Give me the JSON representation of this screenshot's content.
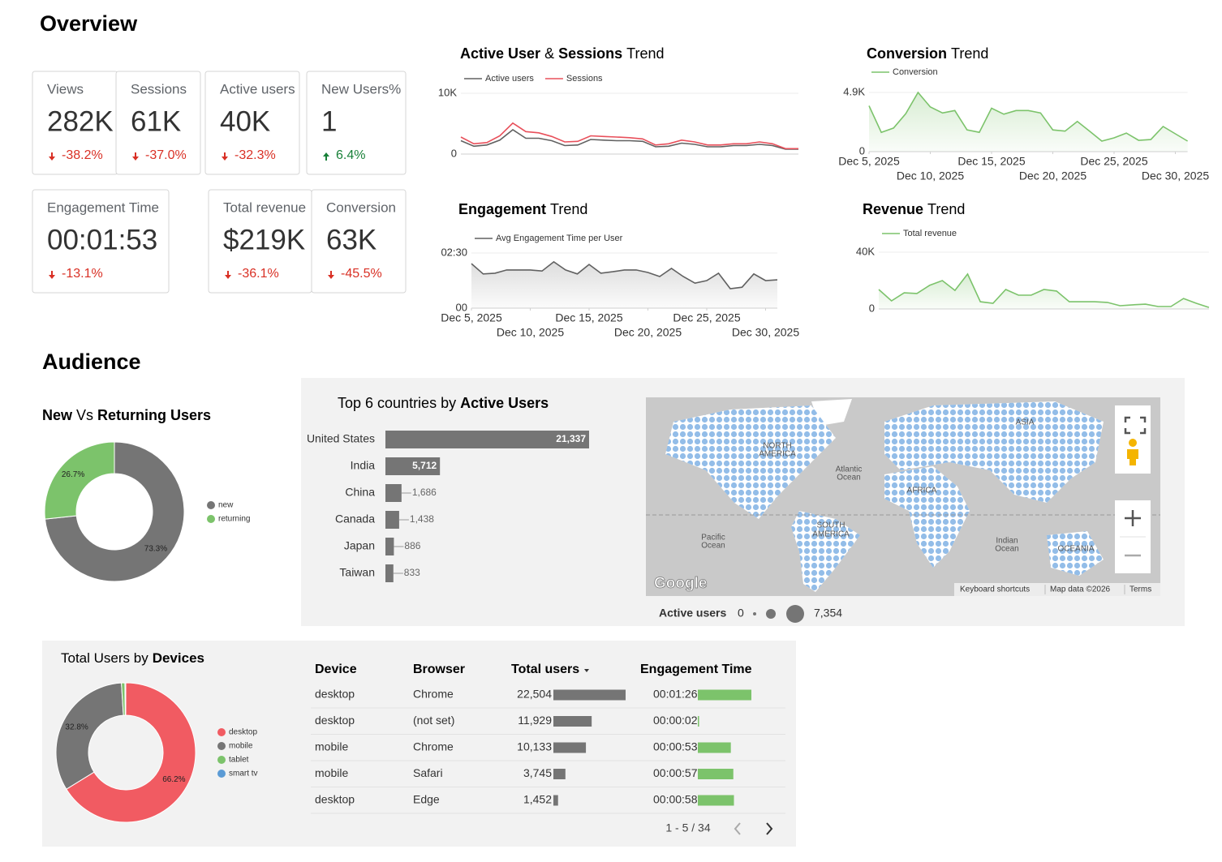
{
  "header": {
    "overview": "Overview",
    "audience": "Audience"
  },
  "kpis": [
    {
      "label": "Views",
      "value": "282K",
      "change": "-38.2%"
    },
    {
      "label": "Sessions",
      "value": "61K",
      "change": "-37.0%"
    },
    {
      "label": "Active users",
      "value": "40K",
      "change": "-32.3%"
    },
    {
      "label": "New Users%",
      "value": "1",
      "change": "6.4%"
    },
    {
      "label": "Engagement Time",
      "value": "00:01:53",
      "change": "-13.1%"
    },
    {
      "label": "Total revenue",
      "value": "$219K",
      "change": "-36.1%"
    },
    {
      "label": "Conversion",
      "value": "63K",
      "change": "-45.5%"
    }
  ],
  "chart_data": [
    {
      "type": "line",
      "title": [
        {
          "text": "Active User",
          "bold": true
        },
        {
          "text": "&",
          "bold": false
        },
        {
          "text": "Sessions",
          "bold": true
        },
        {
          "text": "Trend",
          "bold": false
        }
      ],
      "categories": [
        null,
        null,
        null,
        null,
        null,
        null,
        null,
        null,
        null,
        null,
        null,
        null,
        null,
        null,
        null,
        null,
        null,
        null,
        null,
        null,
        null,
        null,
        null,
        null,
        null,
        null,
        null
      ],
      "series": [
        {
          "name": "Active users",
          "color": "#616161",
          "values": [
            2200,
            1300,
            1500,
            2300,
            4000,
            2600,
            2600,
            2200,
            1400,
            1500,
            2400,
            2300,
            2200,
            2200,
            2100,
            1200,
            1300,
            1800,
            1600,
            1200,
            1200,
            1400,
            1400,
            1600,
            1400,
            800,
            800
          ]
        },
        {
          "name": "Sessions",
          "color": "#e8505b",
          "values": [
            2800,
            1700,
            1900,
            3000,
            5100,
            3700,
            3500,
            2900,
            2000,
            2100,
            3000,
            2900,
            2800,
            2700,
            2500,
            1500,
            1700,
            2300,
            2000,
            1500,
            1500,
            1700,
            1700,
            2000,
            1700,
            900,
            900
          ]
        }
      ],
      "ylim": [
        0,
        10000
      ],
      "yticks": [
        0,
        {
          "value": 10000,
          "label": "10K"
        }
      ],
      "legend": "top",
      "area": false
    },
    {
      "type": "line",
      "title": [
        {
          "text": "Conversion",
          "bold": true
        },
        {
          "text": "Trend",
          "bold": false
        }
      ],
      "x": [
        "2025-12-05",
        "2025-12-06",
        "2025-12-07",
        "2025-12-08",
        "2025-12-09",
        "2025-12-10",
        "2025-12-11",
        "2025-12-12",
        "2025-12-13",
        "2025-12-14",
        "2025-12-15",
        "2025-12-16",
        "2025-12-17",
        "2025-12-18",
        "2025-12-19",
        "2025-12-20",
        "2025-12-21",
        "2025-12-22",
        "2025-12-23",
        "2025-12-24",
        "2025-12-25",
        "2025-12-26",
        "2025-12-27",
        "2025-12-28",
        "2025-12-29",
        "2025-12-30",
        "2025-12-31"
      ],
      "series": [
        {
          "name": "Conversion",
          "color": "#7cc36b",
          "values": [
            3800,
            1600,
            1950,
            3150,
            4900,
            3700,
            3200,
            3400,
            1800,
            1600,
            3600,
            3100,
            3400,
            3400,
            3200,
            1800,
            1700,
            2500,
            1700,
            870,
            1140,
            1540,
            940,
            1000,
            2080,
            1480,
            870
          ]
        }
      ],
      "ylim": [
        0,
        4900
      ],
      "yticks": [
        0,
        {
          "value": 4900,
          "label": "4.9K"
        }
      ],
      "xticks": [
        {
          "value": "2025-12-05",
          "label": "Dec 5, 2025"
        },
        {
          "value": "2025-12-10",
          "label": "Dec 10, 2025"
        },
        {
          "value": "2025-12-15",
          "label": "Dec 15, 2025"
        },
        {
          "value": "2025-12-20",
          "label": "Dec 20, 2025"
        },
        {
          "value": "2025-12-25",
          "label": "Dec 25, 2025"
        },
        {
          "value": "2025-12-30",
          "label": "Dec 30, 2025"
        }
      ],
      "legend": "top",
      "area": true
    },
    {
      "type": "line",
      "title": [
        {
          "text": "Engagement",
          "bold": true
        },
        {
          "text": "Trend",
          "bold": false
        }
      ],
      "x": [
        "2025-12-05",
        "2025-12-06",
        "2025-12-07",
        "2025-12-08",
        "2025-12-09",
        "2025-12-10",
        "2025-12-11",
        "2025-12-12",
        "2025-12-13",
        "2025-12-14",
        "2025-12-15",
        "2025-12-16",
        "2025-12-17",
        "2025-12-18",
        "2025-12-19",
        "2025-12-20",
        "2025-12-21",
        "2025-12-22",
        "2025-12-23",
        "2025-12-24",
        "2025-12-25",
        "2025-12-26",
        "2025-12-27",
        "2025-12-28",
        "2025-12-29",
        "2025-12-30",
        "2025-12-31"
      ],
      "series": [
        {
          "name": "Avg Engagement Time per User",
          "color": "#616161",
          "values": [
            121,
            93,
            95,
            104,
            104,
            104,
            101,
            126,
            104,
            93,
            119,
            95,
            99,
            104,
            104,
            97,
            86,
            108,
            86,
            68,
            75,
            95,
            53,
            57,
            93,
            75,
            77
          ]
        }
      ],
      "ylim": [
        0,
        150
      ],
      "yticks": [
        {
          "value": 0,
          "label": "00"
        },
        {
          "value": 150,
          "label": "02:30"
        }
      ],
      "xticks": [
        {
          "value": "2025-12-05",
          "label": "Dec 5, 2025"
        },
        {
          "value": "2025-12-10",
          "label": "Dec 10, 2025"
        },
        {
          "value": "2025-12-15",
          "label": "Dec 15, 2025"
        },
        {
          "value": "2025-12-20",
          "label": "Dec 20, 2025"
        },
        {
          "value": "2025-12-25",
          "label": "Dec 25, 2025"
        },
        {
          "value": "2025-12-30",
          "label": "Dec 30, 2025"
        }
      ],
      "legend": "top",
      "area": true
    },
    {
      "type": "line",
      "title": [
        {
          "text": "Revenue",
          "bold": true
        },
        {
          "text": "Trend",
          "bold": false
        }
      ],
      "categories": [
        null,
        null,
        null,
        null,
        null,
        null,
        null,
        null,
        null,
        null,
        null,
        null,
        null,
        null,
        null,
        null,
        null,
        null,
        null,
        null,
        null,
        null,
        null,
        null,
        null,
        null,
        null
      ],
      "series": [
        {
          "name": "Total revenue",
          "color": "#7cc36b",
          "values": [
            13700,
            5700,
            11400,
            10900,
            16600,
            20000,
            13100,
            24600,
            5100,
            4000,
            13700,
            9700,
            9700,
            13700,
            12600,
            5100,
            5100,
            5100,
            4600,
            2300,
            2900,
            3400,
            1700,
            1700,
            7400,
            4000,
            1100
          ]
        }
      ],
      "ylim": [
        0,
        40000
      ],
      "yticks": [
        0,
        {
          "value": 40000,
          "label": "40K"
        }
      ],
      "legend": "top",
      "area": true
    },
    {
      "type": "pie",
      "title": [
        {
          "text": "New",
          "bold": true
        },
        {
          "text": "Vs",
          "bold": false
        },
        {
          "text": "Returning Users",
          "bold": true
        }
      ],
      "categories": [
        "new",
        "returning"
      ],
      "values": [
        73.3,
        26.7
      ],
      "value_labels": [
        "73.3%",
        "26.7%"
      ],
      "colors": [
        "#757575",
        "#7cc36b"
      ],
      "donut": true,
      "legend": "right"
    },
    {
      "type": "hbar",
      "title": [
        {
          "text": "Top 6 countries by",
          "bold": false
        },
        {
          "text": "Active Users",
          "bold": true
        }
      ],
      "categories": [
        "United States",
        "India",
        "China",
        "Canada",
        "Japan",
        "Taiwan"
      ],
      "values": [
        21337,
        5712,
        1686,
        1438,
        886,
        833
      ],
      "value_labels": [
        "21,337",
        "5,712",
        "1,686",
        "1,438",
        "886",
        "833"
      ],
      "color": "#757575"
    },
    {
      "type": "pie",
      "title": [
        {
          "text": "Total Users by",
          "bold": false
        },
        {
          "text": "Devices",
          "bold": true
        }
      ],
      "categories": [
        "desktop",
        "mobile",
        "tablet",
        "smart tv"
      ],
      "values": [
        66.2,
        32.8,
        0.8,
        0.2
      ],
      "value_labels": [
        "66.2%",
        "32.8%",
        null,
        null
      ],
      "colors": [
        "#f15b62",
        "#757575",
        "#7cc36b",
        "#5b9bd5"
      ],
      "donut": true,
      "legend": "right"
    }
  ],
  "map": {
    "labels": [
      "NORTH",
      "AMERICA",
      "Atlantic",
      "Ocean",
      "AFRICA",
      "ASIA",
      "SOUTH",
      "AMERICA",
      "Pacific",
      "Ocean",
      "Indian",
      "Ocean",
      "OCEANIA"
    ],
    "brand": "Google",
    "attribution": [
      "Keyboard shortcuts",
      "Map data ©2026",
      "Terms"
    ],
    "legend": {
      "title": "Active users",
      "min": 0,
      "max": "7,354"
    }
  },
  "table": {
    "headers": [
      "Device",
      "Browser",
      "Total users",
      "Engagement Time"
    ],
    "rows": [
      [
        "desktop",
        "Chrome",
        {
          "value": 22504,
          "label": "22,504"
        },
        {
          "value": 86,
          "label": "00:01:26"
        }
      ],
      [
        "desktop",
        "(not set)",
        {
          "value": 11929,
          "label": "11,929"
        },
        {
          "value": 2,
          "label": "00:00:02"
        }
      ],
      [
        "mobile",
        "Chrome",
        {
          "value": 10133,
          "label": "10,133"
        },
        {
          "value": 53,
          "label": "00:00:53"
        }
      ],
      [
        "mobile",
        "Safari",
        {
          "value": 3745,
          "label": "3,745"
        },
        {
          "value": 57,
          "label": "00:00:57"
        }
      ],
      [
        "desktop",
        "Edge",
        {
          "value": 1452,
          "label": "1,452"
        },
        {
          "value": 58,
          "label": "00:00:58"
        }
      ]
    ],
    "pagination": "1 - 5 / 34"
  }
}
